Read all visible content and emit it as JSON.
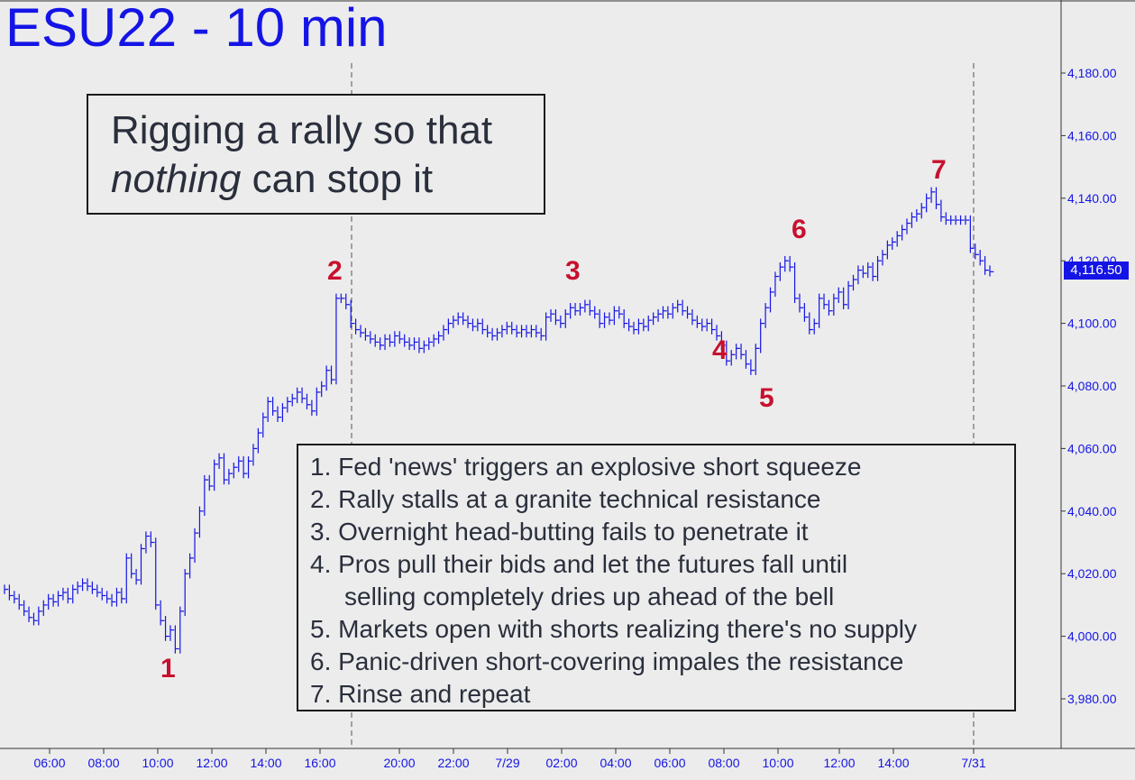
{
  "title": "ESU22 - 10 min",
  "headline": {
    "line1": "Rigging a rally so that",
    "emph": "nothing",
    "rest": " can stop it"
  },
  "notes": [
    "1. Fed 'news' triggers an explosive short squeeze",
    "2. Rally stalls at a granite technical resistance",
    "3. Overnight head-butting fails to penetrate it",
    "4. Pros pull their bids and let the futures fall until",
    "selling completely dries up ahead of the bell",
    "5. Markets open with shorts realizing there's no supply",
    "6. Panic-driven short-covering impales the resistance",
    "7. Rinse and repeat"
  ],
  "markers": [
    "1",
    "2",
    "3",
    "4",
    "5",
    "6",
    "7"
  ],
  "last_price": "4,116.50",
  "colors": {
    "line": "#1414e6",
    "marker": "#c8102e",
    "background": "#ececec"
  },
  "chart_data": {
    "type": "line",
    "title": "ESU22 - 10 min",
    "ylim": [
      3970,
      4200
    ],
    "yticks": [
      3980,
      4000,
      4020,
      4040,
      4060,
      4080,
      4100,
      4120,
      4140,
      4160,
      4180
    ],
    "ytick_labels": [
      "3,980.00",
      "4,000.00",
      "4,020.00",
      "4,040.00",
      "4,060.00",
      "4,080.00",
      "4,100.00",
      "4,120.00",
      "4,140.00",
      "4,160.00",
      "4,180.00"
    ],
    "x_labels": [
      "06:00",
      "08:00",
      "10:00",
      "12:00",
      "14:00",
      "16:00",
      "20:00",
      "22:00",
      "7/29",
      "02:00",
      "04:00",
      "06:00",
      "08:00",
      "10:00",
      "12:00",
      "14:00",
      "7/31"
    ],
    "session_breaks": [
      "7/29",
      "7/31"
    ],
    "grid": false,
    "series": [
      {
        "values": [
          4015,
          4013,
          4012,
          4010,
          4008,
          4006,
          4005,
          4008,
          4010,
          4012,
          4011,
          4013,
          4014,
          4012,
          4015,
          4016,
          4017,
          4016,
          4015,
          4014,
          4013,
          4012,
          4011,
          4014,
          4012,
          4025,
          4020,
          4018,
          4028,
          4032,
          4030,
          4010,
          4005,
          4000,
          4002,
          3996,
          4008,
          4020,
          4025,
          4033,
          4040,
          4050,
          4048,
          4055,
          4057,
          4050,
          4052,
          4054,
          4056,
          4052,
          4056,
          4060,
          4065,
          4070,
          4075,
          4072,
          4070,
          4073,
          4075,
          4076,
          4078,
          4076,
          4074,
          4072,
          4078,
          4080,
          4085,
          4082,
          4108,
          4108,
          4106,
          4100,
          4098,
          4097,
          4096,
          4095,
          4094,
          4093,
          4095,
          4094,
          4096,
          4095,
          4094,
          4093,
          4094,
          4092,
          4093,
          4094,
          4095,
          4096,
          4098,
          4100,
          4101,
          4102,
          4101,
          4100,
          4099,
          4100,
          4098,
          4097,
          4096,
          4097,
          4098,
          4099,
          4098,
          4097,
          4098,
          4097,
          4098,
          4097,
          4096,
          4102,
          4103,
          4101,
          4100,
          4103,
          4105,
          4104,
          4105,
          4106,
          4104,
          4103,
          4100,
          4102,
          4101,
          4104,
          4103,
          4100,
          4099,
          4098,
          4100,
          4099,
          4101,
          4102,
          4103,
          4104,
          4103,
          4105,
          4106,
          4104,
          4103,
          4101,
          4100,
          4099,
          4100,
          4098,
          4096,
          4093,
          4088,
          4090,
          4092,
          4090,
          4087,
          4085,
          4092,
          4100,
          4105,
          4110,
          4115,
          4118,
          4120,
          4118,
          4108,
          4105,
          4102,
          4098,
          4100,
          4108,
          4106,
          4104,
          4108,
          4110,
          4106,
          4112,
          4114,
          4117,
          4116,
          4118,
          4115,
          4120,
          4122,
          4125,
          4126,
          4128,
          4130,
          4132,
          4134,
          4135,
          4137,
          4140,
          4142,
          4138,
          4134,
          4133,
          4133,
          4133,
          4133,
          4133,
          4124,
          4122,
          4120,
          4117,
          4116.5
        ]
      }
    ],
    "annotations": [
      "1",
      "2",
      "3",
      "4",
      "5",
      "6",
      "7"
    ],
    "last_value": 4116.5
  }
}
